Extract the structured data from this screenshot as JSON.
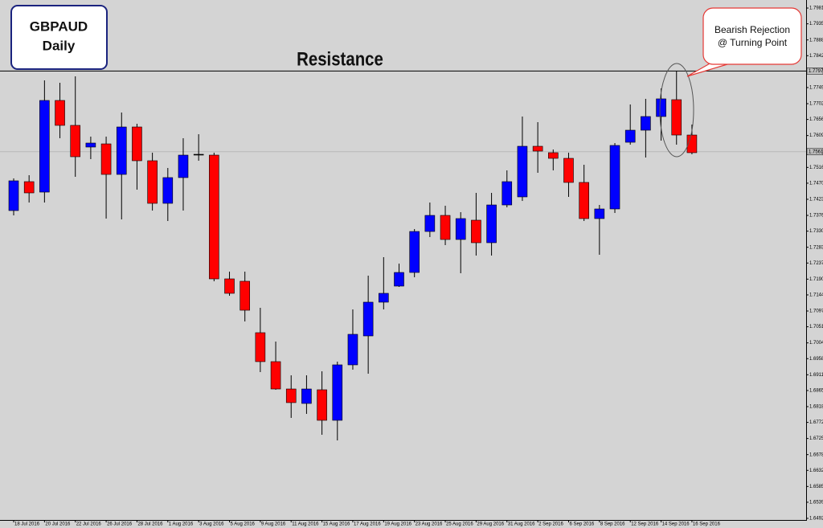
{
  "chart_data": {
    "type": "candlestick",
    "title": "GBPAUD",
    "subtitle": "Daily",
    "annotation": "Resistance",
    "callout": [
      "Bearish Rejection",
      "@ Turning Point"
    ],
    "up_color": "#0000ff",
    "down_color": "#ff0000",
    "doji_color": "#000000",
    "resistance": {
      "value": 1.77974,
      "label": "1.77974"
    },
    "price_line": {
      "value": 1.75618,
      "label": "1.75618"
    },
    "ylim": [
      1.64873,
      1.80045
    ],
    "yticks": [
      {
        "value": 1.7981,
        "label": "1.79810"
      },
      {
        "value": 1.7935,
        "label": "1.79350"
      },
      {
        "value": 1.7888,
        "label": "1.78880"
      },
      {
        "value": 1.7842,
        "label": "1.78420"
      },
      {
        "value": 1.7749,
        "label": "1.77490"
      },
      {
        "value": 1.7702,
        "label": "1.77020"
      },
      {
        "value": 1.7656,
        "label": "1.76560"
      },
      {
        "value": 1.7609,
        "label": "1.76090"
      },
      {
        "value": 1.7516,
        "label": "1.75160"
      },
      {
        "value": 1.747,
        "label": "1.74700"
      },
      {
        "value": 1.7423,
        "label": "1.74230"
      },
      {
        "value": 1.7376,
        "label": "1.73760"
      },
      {
        "value": 1.733,
        "label": "1.73300"
      },
      {
        "value": 1.7283,
        "label": "1.72830"
      },
      {
        "value": 1.7237,
        "label": "1.72370"
      },
      {
        "value": 1.719,
        "label": "1.71900"
      },
      {
        "value": 1.7144,
        "label": "1.71440"
      },
      {
        "value": 1.7097,
        "label": "1.70970"
      },
      {
        "value": 1.7051,
        "label": "1.70510"
      },
      {
        "value": 1.7004,
        "label": "1.70040"
      },
      {
        "value": 1.6958,
        "label": "1.69580"
      },
      {
        "value": 1.6911,
        "label": "1.69110"
      },
      {
        "value": 1.6865,
        "label": "1.68650"
      },
      {
        "value": 1.6818,
        "label": "1.68180"
      },
      {
        "value": 1.6772,
        "label": "1.67720"
      },
      {
        "value": 1.6725,
        "label": "1.67250"
      },
      {
        "value": 1.6678,
        "label": "1.66780"
      },
      {
        "value": 1.6632,
        "label": "1.66320"
      },
      {
        "value": 1.6585,
        "label": "1.65850"
      },
      {
        "value": 1.6539,
        "label": "1.65390"
      },
      {
        "value": 1.6492,
        "label": "1.64920"
      }
    ],
    "categories": [
      "18 Jul 2016",
      null,
      "20 Jul 2016",
      null,
      "22 Jul 2016",
      null,
      "26 Jul 2016",
      null,
      "28 Jul 2016",
      null,
      "1 Aug 2016",
      null,
      "3 Aug 2016",
      null,
      "5 Aug 2016",
      null,
      "9 Aug 2016",
      null,
      "11 Aug 2016",
      null,
      "15 Aug 2016",
      null,
      "17 Aug 2016",
      null,
      "19 Aug 2016",
      null,
      "23 Aug 2016",
      null,
      "25 Aug 2016",
      null,
      "29 Aug 2016",
      null,
      "31 Aug 2016",
      null,
      "2 Sep 2016",
      null,
      "6 Sep 2016",
      null,
      "8 Sep 2016",
      null,
      "12 Sep 2016",
      null,
      "14 Sep 2016",
      null,
      "16 Sep 2016"
    ],
    "open": [
      1.73901,
      1.74745,
      1.7444,
      1.77114,
      1.76387,
      1.75754,
      1.75847,
      1.74956,
      1.7634,
      1.75355,
      1.74112,
      1.74863,
      1.75543,
      1.75519,
      1.71908,
      1.71838,
      1.70337,
      1.69493,
      1.68695,
      1.68273,
      1.68672,
      1.67781,
      1.69399,
      1.70243,
      1.71228,
      1.71697,
      1.72095,
      1.73291,
      1.7376,
      1.73057,
      1.7362,
      1.72963,
      1.74065,
      1.743,
      1.75777,
      1.7559,
      1.75425,
      1.74722,
      1.73667,
      1.73948,
      1.75894,
      1.76246,
      1.76645,
      1.77137,
      1.76105
    ],
    "high": [
      1.74839,
      1.74933,
      1.777,
      1.7763,
      1.77817,
      1.76059,
      1.76059,
      1.76762,
      1.76434,
      1.7559,
      1.75144,
      1.76012,
      1.76129,
      1.7559,
      1.72119,
      1.72119,
      1.71064,
      1.70079,
      1.69094,
      1.69094,
      1.69211,
      1.69493,
      1.71017,
      1.72002,
      1.72541,
      1.72353,
      1.73362,
      1.74136,
      1.74042,
      1.73854,
      1.74417,
      1.74417,
      1.75074,
      1.76645,
      1.76481,
      1.75683,
      1.7559,
      1.75238,
      1.74065,
      1.75871,
      1.76997,
      1.77161,
      1.77466,
      1.77981,
      1.7641
    ],
    "low": [
      1.7376,
      1.74136,
      1.74136,
      1.76012,
      1.74886,
      1.75402,
      1.73667,
      1.73643,
      1.74511,
      1.73901,
      1.73596,
      1.73901,
      1.75355,
      1.71838,
      1.71415,
      1.70665,
      1.69188,
      1.68672,
      1.67851,
      1.67968,
      1.67359,
      1.67194,
      1.69258,
      1.69141,
      1.71017,
      1.71673,
      1.71955,
      1.73127,
      1.72893,
      1.72072,
      1.72588,
      1.72588,
      1.73995,
      1.74182,
      1.75003,
      1.75074,
      1.743,
      1.73596,
      1.72611,
      1.73831,
      1.75824,
      1.75449,
      1.75941,
      1.75824,
      1.75543
    ],
    "close": [
      1.74769,
      1.74417,
      1.77114,
      1.76387,
      1.75472,
      1.75871,
      1.74956,
      1.7634,
      1.75355,
      1.74112,
      1.74863,
      1.75519,
      1.75543,
      1.71908,
      1.71486,
      1.70993,
      1.69493,
      1.68695,
      1.68297,
      1.68695,
      1.67781,
      1.69399,
      1.7029,
      1.71228,
      1.71486,
      1.72095,
      1.73291,
      1.7376,
      1.73057,
      1.73667,
      1.72963,
      1.74065,
      1.74745,
      1.75777,
      1.75636,
      1.75425,
      1.74722,
      1.73667,
      1.73948,
      1.75801,
      1.76246,
      1.76645,
      1.77161,
      1.76105,
      1.7559
    ]
  }
}
